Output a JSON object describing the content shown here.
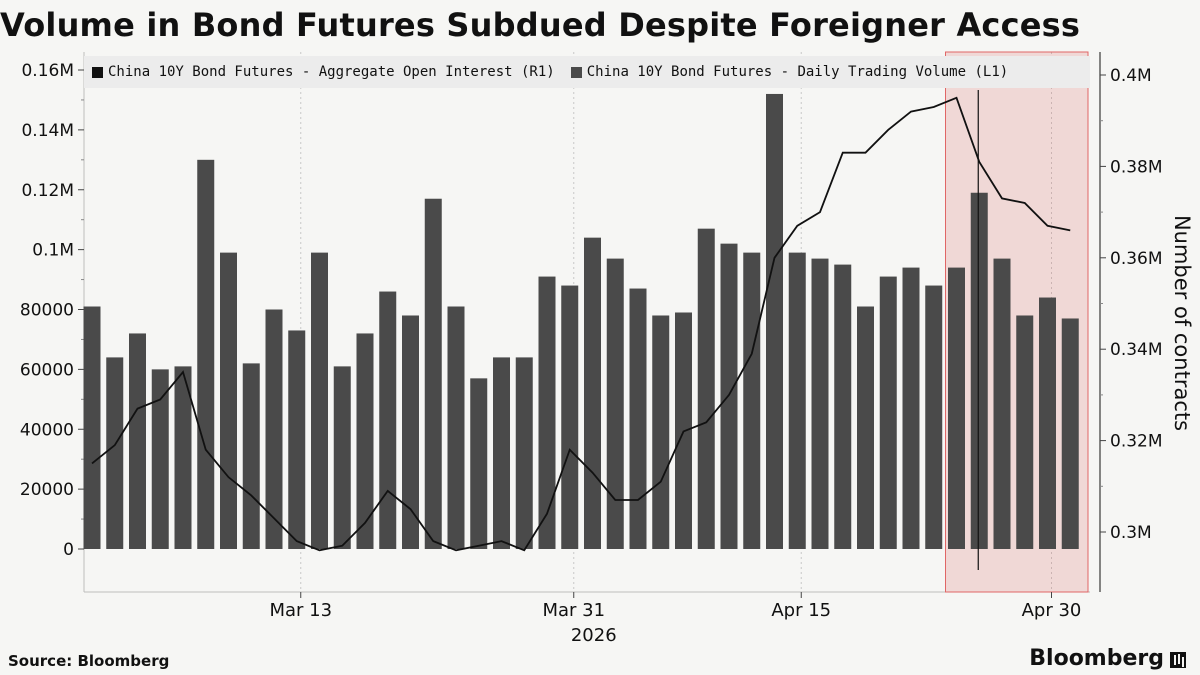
{
  "title": "Volume in Bond Futures Subdued Despite Foreigner Access",
  "footer": {
    "source": "Source: Bloomberg",
    "brand": "Bloomberg"
  },
  "legend": [
    {
      "label": "China 10Y Bond Futures - Aggregate Open Interest (R1)",
      "color": "#111111"
    },
    {
      "label": "China 10Y Bond Futures - Daily Trading Volume  (L1)",
      "color": "#4a4a4a"
    }
  ],
  "chart_data": {
    "type": "bar+line",
    "title": "Volume in Bond Futures Subdued Despite Foreigner Access",
    "x_ticks": [
      "Mar 13",
      "Mar 31",
      "Apr 15",
      "Apr 30"
    ],
    "x_tick_year": "2026",
    "y_left": {
      "ticks": [
        "0",
        "20000",
        "40000",
        "60000",
        "80000",
        "0.1M",
        "0.12M",
        "0.14M",
        "0.16M"
      ],
      "range": [
        -15000,
        0.162
      ]
    },
    "y_right": {
      "label": "Number of contracts",
      "ticks": [
        "0.3M",
        "0.32M",
        "0.34M",
        "0.36M",
        "0.38M",
        "0.4M"
      ],
      "range": [
        0.292,
        0.402
      ]
    },
    "series": [
      {
        "name": "China 10Y Bond Futures - Daily Trading Volume  (L1)",
        "type": "bar",
        "axis": "left",
        "color": "#4a4a4a",
        "values": [
          81000,
          64000,
          72000,
          60000,
          61000,
          130000,
          99000,
          62000,
          80000,
          73000,
          99000,
          61000,
          72000,
          86000,
          78000,
          117000,
          81000,
          57000,
          64000,
          64000,
          91000,
          88000,
          104000,
          97000,
          87000,
          78000,
          79000,
          107000,
          102000,
          99000,
          152000,
          99000,
          97000,
          95000,
          81000,
          91000,
          94000,
          88000,
          94000,
          119000,
          97000,
          78000,
          84000,
          77000
        ]
      },
      {
        "name": "China 10Y Bond Futures - Aggregate Open Interest (R1)",
        "type": "line",
        "axis": "right",
        "color": "#111111",
        "values": [
          0.315,
          0.319,
          0.327,
          0.329,
          0.335,
          0.318,
          0.312,
          0.308,
          0.303,
          0.298,
          0.296,
          0.297,
          0.302,
          0.309,
          0.305,
          0.298,
          0.296,
          0.297,
          0.298,
          0.296,
          0.304,
          0.318,
          0.313,
          0.307,
          0.307,
          0.311,
          0.322,
          0.324,
          0.33,
          0.339,
          0.36,
          0.367,
          0.37,
          0.383,
          0.383,
          0.388,
          0.392,
          0.393,
          0.395,
          0.381,
          0.373,
          0.372,
          0.367,
          0.366
        ]
      }
    ],
    "highlight": {
      "from_index": 38,
      "to_index": 43,
      "color": "#d9534f"
    },
    "marker_index": 39
  }
}
